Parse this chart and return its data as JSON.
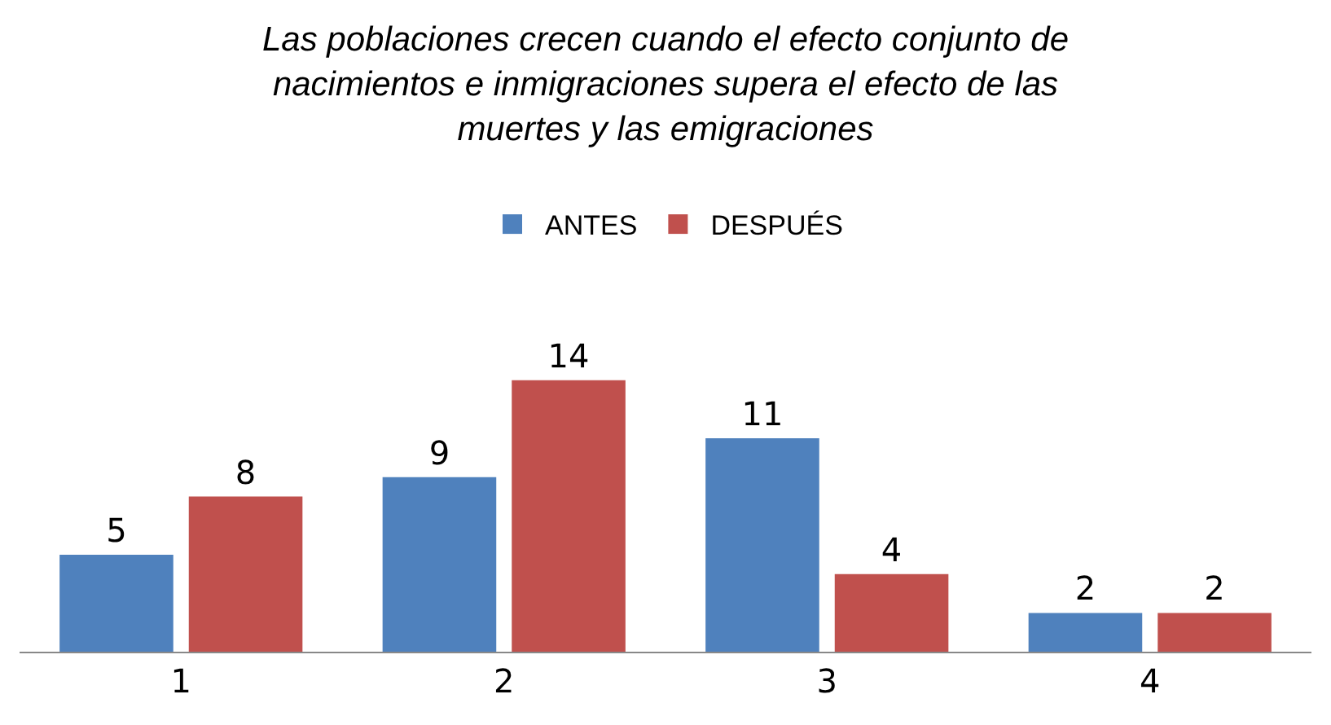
{
  "chart_data": {
    "type": "bar",
    "title": "Las poblaciones crecen cuando el efecto conjunto de\nnacimientos e inmigraciones supera el efecto de las\nmuertes y las emigraciones",
    "categories": [
      "1",
      "2",
      "3",
      "4"
    ],
    "series": [
      {
        "name": "ANTES",
        "color": "#4f81bd",
        "values": [
          5,
          9,
          11,
          2
        ]
      },
      {
        "name": "DESPUÉS",
        "color": "#c0504d",
        "values": [
          8,
          14,
          4,
          2
        ]
      }
    ],
    "data_labels": true,
    "grid": false,
    "legend": "top"
  }
}
